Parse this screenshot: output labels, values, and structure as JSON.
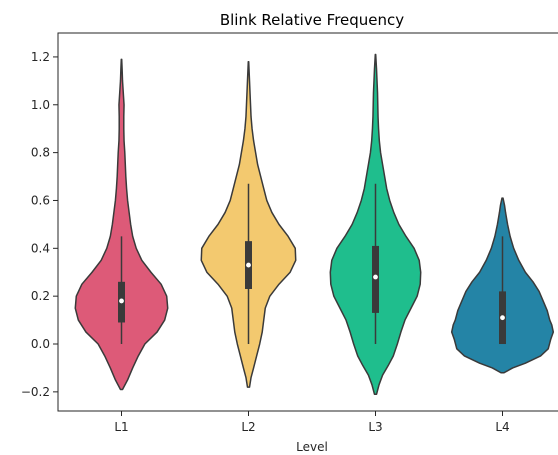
{
  "chart_data": {
    "type": "violin",
    "title": "Blink Relative Frequency",
    "xlabel": "Level",
    "ylabel": "",
    "ylim": [
      -0.28,
      1.3
    ],
    "yticks": [
      -0.2,
      0.0,
      0.2,
      0.4,
      0.6,
      0.8,
      1.0,
      1.2
    ],
    "ytick_labels": [
      "−0.2",
      "0.0",
      "0.2",
      "0.4",
      "0.6",
      "0.8",
      "1.0",
      "1.2"
    ],
    "categories": [
      "L1",
      "L2",
      "L3",
      "L4"
    ],
    "grid": false,
    "series": [
      {
        "category": "L1",
        "color": "#dd5a78",
        "min": 0.0,
        "q1": 0.09,
        "median": 0.18,
        "q3": 0.26,
        "max": 0.45,
        "kde_range": [
          -0.19,
          1.19
        ],
        "density": [
          [
            -0.19,
            0.02
          ],
          [
            -0.15,
            0.12
          ],
          [
            -0.1,
            0.22
          ],
          [
            -0.05,
            0.33
          ],
          [
            0.0,
            0.46
          ],
          [
            0.05,
            0.7
          ],
          [
            0.1,
            0.85
          ],
          [
            0.15,
            0.91
          ],
          [
            0.2,
            0.89
          ],
          [
            0.25,
            0.78
          ],
          [
            0.3,
            0.58
          ],
          [
            0.35,
            0.4
          ],
          [
            0.4,
            0.29
          ],
          [
            0.45,
            0.22
          ],
          [
            0.5,
            0.18
          ],
          [
            0.55,
            0.15
          ],
          [
            0.6,
            0.12
          ],
          [
            0.65,
            0.1
          ],
          [
            0.7,
            0.085
          ],
          [
            0.75,
            0.075
          ],
          [
            0.8,
            0.065
          ],
          [
            0.85,
            0.05
          ],
          [
            0.9,
            0.045
          ],
          [
            0.95,
            0.045
          ],
          [
            1.0,
            0.05
          ],
          [
            1.05,
            0.035
          ],
          [
            1.1,
            0.02
          ],
          [
            1.15,
            0.012
          ],
          [
            1.19,
            0.004
          ]
        ]
      },
      {
        "category": "L2",
        "color": "#f3c96f",
        "min": 0.0,
        "q1": 0.23,
        "median": 0.33,
        "q3": 0.43,
        "max": 0.67,
        "kde_range": [
          -0.18,
          1.18
        ],
        "density": [
          [
            -0.18,
            0.02
          ],
          [
            -0.14,
            0.05
          ],
          [
            -0.1,
            0.1
          ],
          [
            -0.05,
            0.16
          ],
          [
            0.0,
            0.22
          ],
          [
            0.05,
            0.27
          ],
          [
            0.1,
            0.3
          ],
          [
            0.15,
            0.33
          ],
          [
            0.2,
            0.42
          ],
          [
            0.25,
            0.6
          ],
          [
            0.3,
            0.82
          ],
          [
            0.35,
            0.93
          ],
          [
            0.4,
            0.92
          ],
          [
            0.45,
            0.78
          ],
          [
            0.5,
            0.6
          ],
          [
            0.55,
            0.46
          ],
          [
            0.6,
            0.36
          ],
          [
            0.65,
            0.3
          ],
          [
            0.7,
            0.24
          ],
          [
            0.75,
            0.18
          ],
          [
            0.8,
            0.14
          ],
          [
            0.85,
            0.1
          ],
          [
            0.9,
            0.07
          ],
          [
            0.95,
            0.05
          ],
          [
            1.0,
            0.04
          ],
          [
            1.05,
            0.03
          ],
          [
            1.1,
            0.02
          ],
          [
            1.15,
            0.01
          ],
          [
            1.18,
            0.004
          ]
        ]
      },
      {
        "category": "L3",
        "color": "#1fbe8d",
        "min": 0.0,
        "q1": 0.13,
        "median": 0.28,
        "q3": 0.41,
        "max": 0.67,
        "kde_range": [
          -0.21,
          1.21
        ],
        "density": [
          [
            -0.21,
            0.02
          ],
          [
            -0.17,
            0.07
          ],
          [
            -0.13,
            0.14
          ],
          [
            -0.09,
            0.25
          ],
          [
            -0.05,
            0.35
          ],
          [
            0.0,
            0.43
          ],
          [
            0.05,
            0.5
          ],
          [
            0.1,
            0.58
          ],
          [
            0.15,
            0.7
          ],
          [
            0.2,
            0.82
          ],
          [
            0.25,
            0.88
          ],
          [
            0.3,
            0.89
          ],
          [
            0.35,
            0.86
          ],
          [
            0.4,
            0.76
          ],
          [
            0.45,
            0.6
          ],
          [
            0.5,
            0.46
          ],
          [
            0.55,
            0.36
          ],
          [
            0.6,
            0.28
          ],
          [
            0.65,
            0.22
          ],
          [
            0.7,
            0.18
          ],
          [
            0.75,
            0.14
          ],
          [
            0.8,
            0.1
          ],
          [
            0.85,
            0.075
          ],
          [
            0.9,
            0.06
          ],
          [
            0.95,
            0.05
          ],
          [
            1.0,
            0.045
          ],
          [
            1.05,
            0.04
          ],
          [
            1.1,
            0.03
          ],
          [
            1.15,
            0.02
          ],
          [
            1.21,
            0.004
          ]
        ]
      },
      {
        "category": "L4",
        "color": "#2484a6",
        "min": 0.0,
        "q1": 0.0,
        "median": 0.11,
        "q3": 0.22,
        "max": 0.45,
        "kde_range": [
          -0.12,
          0.61
        ],
        "density": [
          [
            -0.12,
            0.03
          ],
          [
            -0.1,
            0.2
          ],
          [
            -0.08,
            0.45
          ],
          [
            -0.05,
            0.75
          ],
          [
            -0.02,
            0.9
          ],
          [
            0.02,
            0.95
          ],
          [
            0.05,
            1.0
          ],
          [
            0.08,
            0.97
          ],
          [
            0.1,
            0.93
          ],
          [
            0.14,
            0.88
          ],
          [
            0.18,
            0.8
          ],
          [
            0.22,
            0.72
          ],
          [
            0.26,
            0.6
          ],
          [
            0.3,
            0.45
          ],
          [
            0.35,
            0.32
          ],
          [
            0.4,
            0.22
          ],
          [
            0.45,
            0.15
          ],
          [
            0.5,
            0.1
          ],
          [
            0.55,
            0.06
          ],
          [
            0.58,
            0.04
          ],
          [
            0.61,
            0.01
          ]
        ]
      }
    ]
  }
}
